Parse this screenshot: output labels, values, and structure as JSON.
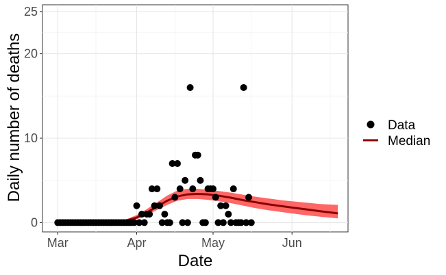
{
  "chart_data": {
    "type": "scatter",
    "xlabel": "Date",
    "ylabel": "Daily number of deaths",
    "xlim": [
      "2020-02-24",
      "2020-06-23"
    ],
    "ylim": [
      -1.1,
      25.8
    ],
    "x_ticks": [
      {
        "date": "2020-03-01",
        "label": "Mar"
      },
      {
        "date": "2020-04-01",
        "label": "Apr"
      },
      {
        "date": "2020-05-01",
        "label": "May"
      },
      {
        "date": "2020-06-01",
        "label": "Jun"
      }
    ],
    "y_ticks": [
      0,
      10,
      20,
      25
    ],
    "grid": true,
    "legend_position": "right",
    "legend": [
      {
        "label": "Data",
        "kind": "point",
        "color": "#000000"
      },
      {
        "label": "Median",
        "kind": "line",
        "color": "#8b0000"
      }
    ],
    "colors": {
      "data": "#000000",
      "median": "#8b0000",
      "band": "#ff6666"
    },
    "series": [
      {
        "name": "Data",
        "kind": "points",
        "points": [
          [
            "2020-03-01",
            0
          ],
          [
            "2020-03-02",
            0
          ],
          [
            "2020-03-03",
            0
          ],
          [
            "2020-03-04",
            0
          ],
          [
            "2020-03-05",
            0
          ],
          [
            "2020-03-06",
            0
          ],
          [
            "2020-03-07",
            0
          ],
          [
            "2020-03-08",
            0
          ],
          [
            "2020-03-09",
            0
          ],
          [
            "2020-03-10",
            0
          ],
          [
            "2020-03-11",
            0
          ],
          [
            "2020-03-12",
            0
          ],
          [
            "2020-03-13",
            0
          ],
          [
            "2020-03-14",
            0
          ],
          [
            "2020-03-15",
            0
          ],
          [
            "2020-03-16",
            0
          ],
          [
            "2020-03-17",
            0
          ],
          [
            "2020-03-18",
            0
          ],
          [
            "2020-03-19",
            0
          ],
          [
            "2020-03-20",
            0
          ],
          [
            "2020-03-21",
            0
          ],
          [
            "2020-03-22",
            0
          ],
          [
            "2020-03-23",
            0
          ],
          [
            "2020-03-24",
            0
          ],
          [
            "2020-03-25",
            0
          ],
          [
            "2020-03-26",
            0
          ],
          [
            "2020-03-27",
            0
          ],
          [
            "2020-03-28",
            0
          ],
          [
            "2020-03-29",
            0
          ],
          [
            "2020-03-30",
            0
          ],
          [
            "2020-03-31",
            0
          ],
          [
            "2020-04-01",
            2
          ],
          [
            "2020-04-02",
            0
          ],
          [
            "2020-04-03",
            1
          ],
          [
            "2020-04-04",
            0
          ],
          [
            "2020-04-05",
            1
          ],
          [
            "2020-04-06",
            1
          ],
          [
            "2020-04-07",
            4
          ],
          [
            "2020-04-08",
            2
          ],
          [
            "2020-04-09",
            4
          ],
          [
            "2020-04-10",
            2
          ],
          [
            "2020-04-11",
            0
          ],
          [
            "2020-04-12",
            1
          ],
          [
            "2020-04-13",
            0
          ],
          [
            "2020-04-14",
            0
          ],
          [
            "2020-04-15",
            7
          ],
          [
            "2020-04-16",
            3
          ],
          [
            "2020-04-17",
            7
          ],
          [
            "2020-04-18",
            4
          ],
          [
            "2020-04-19",
            0
          ],
          [
            "2020-04-20",
            5
          ],
          [
            "2020-04-21",
            0
          ],
          [
            "2020-04-22",
            16
          ],
          [
            "2020-04-23",
            4
          ],
          [
            "2020-04-24",
            8
          ],
          [
            "2020-04-25",
            8
          ],
          [
            "2020-04-26",
            5
          ],
          [
            "2020-04-27",
            0
          ],
          [
            "2020-04-28",
            0
          ],
          [
            "2020-04-29",
            4
          ],
          [
            "2020-04-30",
            4
          ],
          [
            "2020-05-01",
            4
          ],
          [
            "2020-05-02",
            3
          ],
          [
            "2020-05-03",
            0
          ],
          [
            "2020-05-04",
            2
          ],
          [
            "2020-05-05",
            0
          ],
          [
            "2020-05-06",
            2
          ],
          [
            "2020-05-07",
            1
          ],
          [
            "2020-05-08",
            0
          ],
          [
            "2020-05-09",
            4
          ],
          [
            "2020-05-10",
            0
          ],
          [
            "2020-05-11",
            0
          ],
          [
            "2020-05-12",
            0
          ],
          [
            "2020-05-13",
            16
          ],
          [
            "2020-05-14",
            0
          ],
          [
            "2020-05-15",
            3
          ],
          [
            "2020-05-16",
            0
          ]
        ]
      },
      {
        "name": "Median",
        "kind": "line",
        "points": [
          [
            "2020-03-01",
            0
          ],
          [
            "2020-03-20",
            0.02
          ],
          [
            "2020-03-25",
            0.1
          ],
          [
            "2020-03-28",
            0.25
          ],
          [
            "2020-04-01",
            0.6
          ],
          [
            "2020-04-05",
            1.2
          ],
          [
            "2020-04-09",
            1.9
          ],
          [
            "2020-04-13",
            2.6
          ],
          [
            "2020-04-17",
            3.1
          ],
          [
            "2020-04-21",
            3.35
          ],
          [
            "2020-04-25",
            3.4
          ],
          [
            "2020-04-29",
            3.35
          ],
          [
            "2020-05-03",
            3.2
          ],
          [
            "2020-05-08",
            2.95
          ],
          [
            "2020-05-13",
            2.65
          ],
          [
            "2020-05-18",
            2.4
          ],
          [
            "2020-05-23",
            2.15
          ],
          [
            "2020-05-28",
            1.95
          ],
          [
            "2020-06-02",
            1.75
          ],
          [
            "2020-06-07",
            1.55
          ],
          [
            "2020-06-12",
            1.35
          ],
          [
            "2020-06-19",
            1.1
          ]
        ]
      },
      {
        "kind": "band",
        "points": [
          [
            "2020-03-01",
            0,
            0
          ],
          [
            "2020-03-20",
            0,
            0.05
          ],
          [
            "2020-03-25",
            0.05,
            0.2
          ],
          [
            "2020-03-28",
            0.15,
            0.4
          ],
          [
            "2020-04-01",
            0.4,
            0.9
          ],
          [
            "2020-04-05",
            0.9,
            1.6
          ],
          [
            "2020-04-09",
            1.5,
            2.4
          ],
          [
            "2020-04-13",
            2.1,
            3.2
          ],
          [
            "2020-04-17",
            2.6,
            3.8
          ],
          [
            "2020-04-21",
            2.8,
            4.0
          ],
          [
            "2020-04-25",
            2.8,
            4.0
          ],
          [
            "2020-04-29",
            2.7,
            3.9
          ],
          [
            "2020-05-03",
            2.55,
            3.75
          ],
          [
            "2020-05-08",
            2.3,
            3.55
          ],
          [
            "2020-05-13",
            2.0,
            3.3
          ],
          [
            "2020-05-18",
            1.7,
            3.05
          ],
          [
            "2020-05-23",
            1.45,
            2.85
          ],
          [
            "2020-05-28",
            1.25,
            2.65
          ],
          [
            "2020-06-02",
            1.05,
            2.5
          ],
          [
            "2020-06-07",
            0.85,
            2.35
          ],
          [
            "2020-06-12",
            0.7,
            2.2
          ],
          [
            "2020-06-19",
            0.5,
            2.1
          ]
        ]
      }
    ]
  }
}
